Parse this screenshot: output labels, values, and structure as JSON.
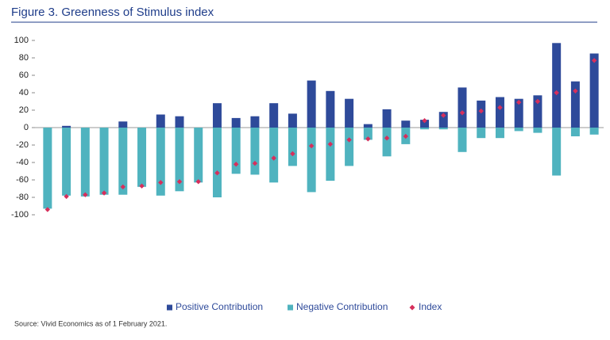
{
  "chart_data": {
    "type": "bar",
    "title": "Figure 3. Greenness of Stimulus index",
    "source": "Source: Vivid Economics as of 1 February 2021.",
    "categories": [
      null,
      null,
      null,
      null,
      null,
      null,
      null,
      null,
      null,
      null,
      null,
      null,
      null,
      null,
      null,
      null,
      null,
      null,
      null,
      null,
      null,
      null,
      null,
      null,
      null,
      null,
      null,
      null,
      null,
      null
    ],
    "series": [
      {
        "name": "Positive Contribution",
        "color": "#2e4a9a",
        "type": "bar",
        "values": [
          0,
          2,
          0,
          0,
          7,
          0,
          15,
          13,
          0,
          28,
          11,
          13,
          28,
          16,
          54,
          42,
          33,
          4,
          21,
          8,
          9,
          18,
          46,
          31,
          35,
          33,
          37,
          97,
          53,
          85
        ]
      },
      {
        "name": "Negative Contribution",
        "color": "#4fb3bf",
        "type": "bar",
        "values": [
          -93,
          -78,
          -79,
          -77,
          -77,
          -68,
          -78,
          -73,
          -63,
          -80,
          -53,
          -54,
          -63,
          -44,
          -74,
          -61,
          -44,
          -14,
          -33,
          -19,
          -2,
          -2,
          -28,
          -12,
          -12,
          -4,
          -6,
          -55,
          -10,
          -8
        ]
      },
      {
        "name": "Index",
        "color": "#d62f5c",
        "type": "scatter",
        "values": [
          -94,
          -79,
          -77,
          -75,
          -68,
          -67,
          -63,
          -62,
          -62,
          -52,
          -42,
          -41,
          -35,
          -30,
          -21,
          -19,
          -14,
          -13,
          -12,
          -10,
          8,
          14,
          17,
          19,
          23,
          29,
          30,
          40,
          42,
          77
        ]
      }
    ],
    "ylim": [
      -100,
      100
    ],
    "yticks": [
      -100,
      -80,
      -60,
      -40,
      -20,
      0,
      20,
      40,
      60,
      80,
      100
    ],
    "grid": false
  }
}
